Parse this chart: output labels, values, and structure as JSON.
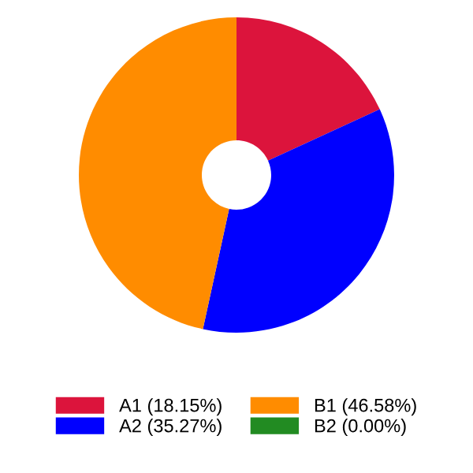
{
  "chart_data": {
    "type": "donut",
    "categories": [
      "A1",
      "A2",
      "B1",
      "B2"
    ],
    "values": [
      18.15,
      35.27,
      46.58,
      0.0
    ],
    "value_labels": [
      "(18.15%)",
      "(35.27%)",
      "(46.58%)",
      "(0.00%)"
    ],
    "colors": [
      "#dc143c",
      "#0000ff",
      "#ff8c00",
      "#228b22"
    ],
    "legend": "bottom"
  }
}
